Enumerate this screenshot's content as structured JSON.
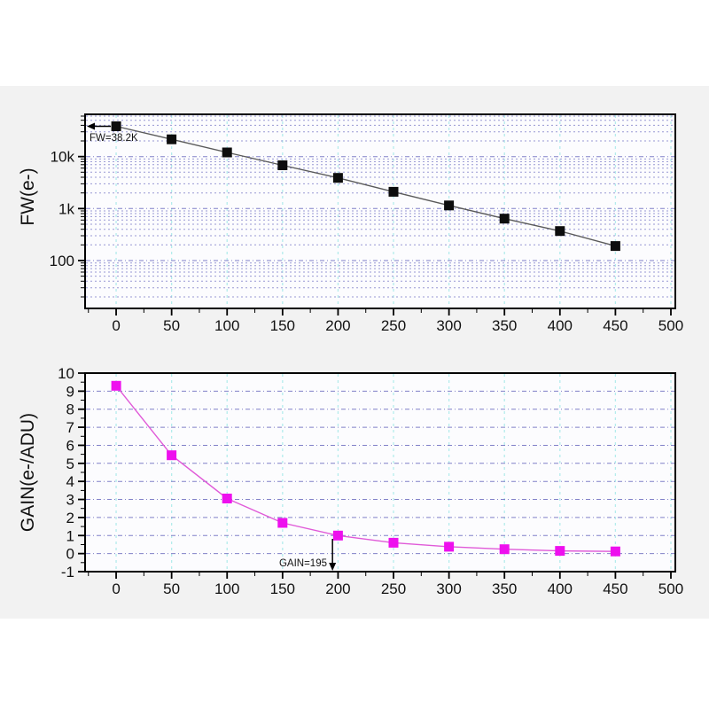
{
  "page": {
    "background_color": "#ffffff",
    "panel_color": "#f2f2f2"
  },
  "chart_data": [
    {
      "id": "fw",
      "type": "line",
      "title": "",
      "xlabel": "",
      "ylabel": "FW(e-)",
      "yscale": "log",
      "x": [
        0,
        50,
        100,
        150,
        200,
        250,
        300,
        350,
        400,
        450
      ],
      "y": [
        38200,
        21500,
        12000,
        6800,
        3900,
        2100,
        1150,
        640,
        370,
        190
      ],
      "xlim": [
        -28,
        504
      ],
      "ylim": [
        12,
        65000
      ],
      "x_ticks": [
        0,
        50,
        100,
        150,
        200,
        250,
        300,
        350,
        400,
        450,
        500
      ],
      "x_tick_labels": [
        "0",
        "50",
        "100",
        "150",
        "200",
        "250",
        "300",
        "350",
        "400",
        "450",
        "500"
      ],
      "y_ticks": [
        {
          "v": 10000,
          "label": "10k"
        },
        {
          "v": 1000,
          "label": "1k"
        },
        {
          "v": 100,
          "label": "100"
        }
      ],
      "annotation": {
        "text": "FW=38.2K",
        "at_x": 0,
        "at_y": 38200,
        "direction": "left"
      },
      "legend": null,
      "grid": "on",
      "colors": {
        "marker": "#0d0d0d",
        "line": "#5a5a5a",
        "plot_bg": "#fcfcfe",
        "grid_h_major": "#8080c8",
        "grid_h_minor": "#9898d4",
        "grid_v": "#b4ecec"
      }
    },
    {
      "id": "gain",
      "type": "line",
      "title": "",
      "xlabel": "",
      "ylabel": "GAIN(e-/ADU)",
      "yscale": "linear",
      "x": [
        0,
        50,
        100,
        150,
        200,
        250,
        300,
        350,
        400,
        450
      ],
      "y": [
        9.3,
        5.45,
        3.05,
        1.7,
        1.0,
        0.6,
        0.38,
        0.24,
        0.15,
        0.12
      ],
      "xlim": [
        -28,
        504
      ],
      "ylim": [
        -1,
        10
      ],
      "x_ticks": [
        0,
        50,
        100,
        150,
        200,
        250,
        300,
        350,
        400,
        450,
        500
      ],
      "x_tick_labels": [
        "0",
        "50",
        "100",
        "150",
        "200",
        "250",
        "300",
        "350",
        "400",
        "450",
        "500"
      ],
      "y_ticks": [
        {
          "v": 10,
          "label": "10"
        },
        {
          "v": 9,
          "label": "9"
        },
        {
          "v": 8,
          "label": "8"
        },
        {
          "v": 7,
          "label": "7"
        },
        {
          "v": 6,
          "label": "6"
        },
        {
          "v": 5,
          "label": "5"
        },
        {
          "v": 4,
          "label": "4"
        },
        {
          "v": 3,
          "label": "3"
        },
        {
          "v": 2,
          "label": "2"
        },
        {
          "v": 1,
          "label": "1"
        },
        {
          "v": 0,
          "label": "0"
        },
        {
          "v": -1,
          "label": "-1"
        }
      ],
      "annotation": {
        "text": "GAIN=195",
        "at_x": 195,
        "direction": "down"
      },
      "legend": null,
      "grid": "on",
      "colors": {
        "marker": "#ee10ee",
        "line": "#e05ad8",
        "plot_bg": "#fcfcfe",
        "grid_h_major": "#8080c8",
        "grid_h_minor": "#9898d4",
        "grid_v": "#b4ecec"
      }
    }
  ]
}
